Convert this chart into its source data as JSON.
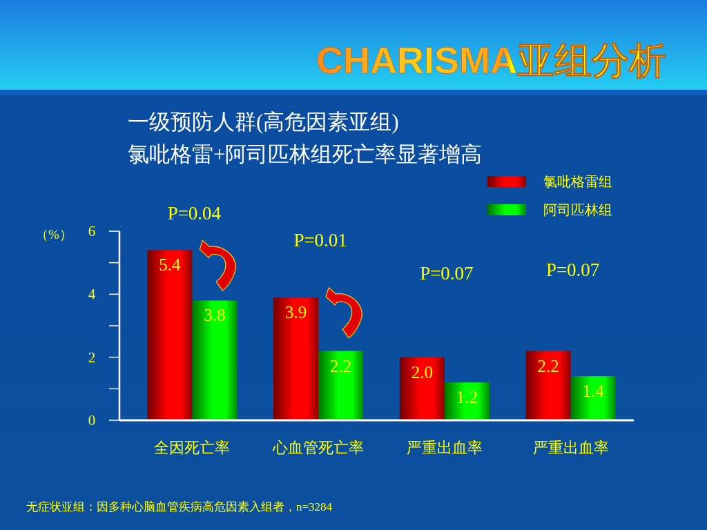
{
  "chart_data": {
    "type": "bar",
    "title": "CHARISMA亚组分析",
    "subtitle": "一级预防人群(高危因素亚组)\n氯吡格雷+阿司匹林组死亡率显著增高",
    "ylabel": "（%）",
    "categories": [
      "全因死亡率",
      "心血管死亡率",
      "严重出血率",
      "严重出血率"
    ],
    "series": [
      {
        "name": "氯吡格雷组",
        "color": "#ff0000",
        "values": [
          5.4,
          3.9,
          2.0,
          2.2
        ],
        "value_labels": [
          "5.4",
          "3.9",
          "2.0",
          "2.2"
        ]
      },
      {
        "name": "阿司匹林组",
        "color": "#00ff00",
        "values": [
          3.8,
          2.2,
          1.2,
          1.4
        ],
        "value_labels": [
          "3.8",
          "2.2",
          "1.2",
          "1.4"
        ]
      }
    ],
    "ylim": [
      0,
      6
    ],
    "yticks": [
      0,
      {
        "value": 1,
        "label": null
      },
      2,
      {
        "value": 3,
        "label": null
      },
      4,
      {
        "value": 5,
        "label": null
      },
      6
    ],
    "legend": "top right",
    "grid": false,
    "annotations": [
      "P=0.04",
      "P=0.01",
      "P=0.07",
      "P=0.07",
      "无症状亚组：因多种心脑血管疾病高危因素入组者，n=3284"
    ]
  }
}
